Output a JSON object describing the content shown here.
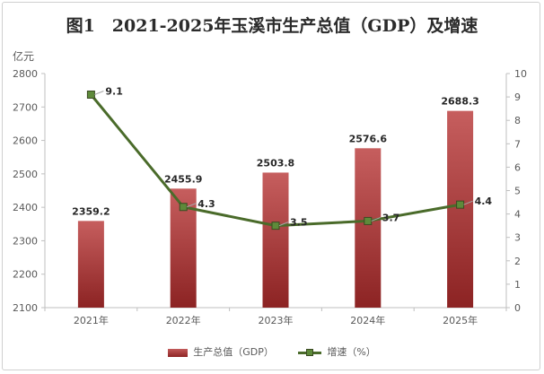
{
  "chart_data": {
    "type": "bar+line",
    "title": "图1　2021-2025年玉溪市生产总值（GDP）及增速",
    "unit_left": "亿元",
    "categories": [
      "2021年",
      "2022年",
      "2023年",
      "2024年",
      "2025年"
    ],
    "series": [
      {
        "name": "生产总值（GDP）",
        "type": "bar",
        "axis": "left",
        "values": [
          2359.2,
          2455.9,
          2503.8,
          2576.6,
          2688.3
        ],
        "labels": [
          "2359.2",
          "2455.9",
          "2503.8",
          "2576.6",
          "2688.3"
        ]
      },
      {
        "name": "增速（%）",
        "type": "line",
        "axis": "right",
        "values": [
          9.1,
          4.3,
          3.5,
          3.7,
          4.4
        ],
        "labels": [
          "9.1",
          "4.3",
          "3.5",
          "3.7",
          "4.4"
        ]
      }
    ],
    "y_left": {
      "min": 2100,
      "max": 2800,
      "step": 100,
      "ticks": [
        "2100",
        "2200",
        "2300",
        "2400",
        "2500",
        "2600",
        "2700",
        "2800"
      ]
    },
    "y_right": {
      "min": 0,
      "max": 10,
      "step": 1,
      "ticks": [
        "0",
        "1",
        "2",
        "3",
        "4",
        "5",
        "6",
        "7",
        "8",
        "9",
        "10"
      ]
    },
    "grid": false,
    "legend": "bottom",
    "colors": {
      "bar": "#a83a3a",
      "line": "#4a6b2a",
      "marker": "#5e8a3a"
    }
  }
}
